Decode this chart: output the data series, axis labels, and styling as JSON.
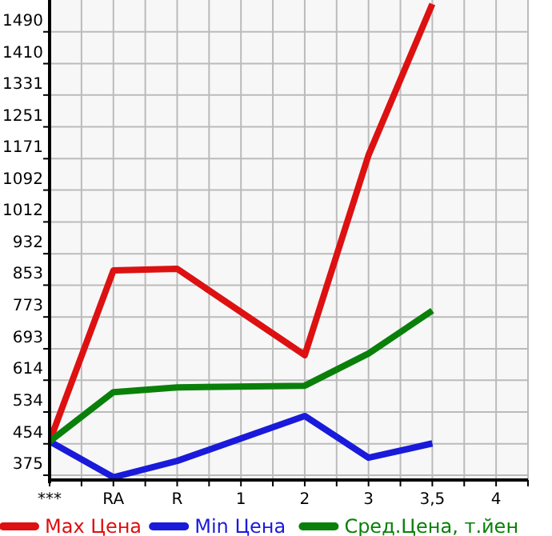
{
  "chart_data": {
    "type": "line",
    "categories": [
      "***",
      null,
      "RA",
      null,
      "R",
      null,
      "1",
      null,
      "2",
      null,
      "3",
      null,
      "3,5",
      null,
      "4",
      null
    ],
    "series": [
      {
        "name": "Max Цена",
        "color": "#dd1111",
        "values": [
          460,
          null,
          890,
          null,
          894,
          null,
          null,
          null,
          677,
          null,
          1180,
          null,
          1560,
          null,
          null,
          null
        ]
      },
      {
        "name": "Min Цена",
        "color": "#1a1adb",
        "values": [
          460,
          null,
          370,
          null,
          411,
          null,
          null,
          null,
          524,
          null,
          419,
          null,
          455,
          null,
          null,
          null
        ]
      },
      {
        "name": "Сред.Цена, т.йен",
        "color": "#0a800a",
        "values": [
          460,
          null,
          584,
          null,
          596,
          null,
          null,
          null,
          600,
          null,
          681,
          null,
          789,
          null,
          null,
          null
        ]
      }
    ],
    "ylim": [
      363,
      1570
    ],
    "yticks": [
      375,
      454,
      534,
      614,
      693,
      773,
      853,
      932,
      1012,
      1092,
      1171,
      1251,
      1331,
      1410,
      1490
    ],
    "grid": true,
    "legend": "bottom",
    "marker": "none",
    "line_style": "solid"
  }
}
